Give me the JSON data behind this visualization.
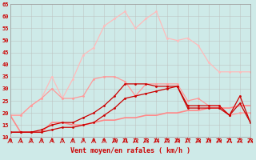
{
  "x": [
    0,
    1,
    2,
    3,
    4,
    5,
    6,
    7,
    8,
    9,
    10,
    11,
    12,
    13,
    14,
    15,
    16,
    17,
    18,
    19,
    20,
    21,
    22,
    23
  ],
  "line_flat": [
    19,
    12,
    12,
    12,
    16,
    16,
    15,
    15,
    16,
    17,
    17,
    18,
    18,
    19,
    19,
    20,
    20,
    21,
    21,
    22,
    22,
    22,
    23,
    23
  ],
  "line_dark1": [
    12,
    12,
    12,
    13,
    15,
    16,
    16,
    18,
    20,
    23,
    27,
    32,
    32,
    32,
    31,
    31,
    31,
    23,
    23,
    23,
    23,
    19,
    27,
    16
  ],
  "line_dark2": [
    12,
    12,
    12,
    12,
    13,
    14,
    14,
    15,
    16,
    19,
    22,
    26,
    27,
    28,
    29,
    30,
    31,
    22,
    22,
    22,
    22,
    19,
    24,
    16
  ],
  "line_med": [
    19,
    19,
    23,
    26,
    30,
    26,
    26,
    27,
    34,
    35,
    35,
    33,
    27,
    32,
    32,
    32,
    32,
    25,
    26,
    23,
    23,
    19,
    20,
    20
  ],
  "line_light": [
    19,
    19,
    23,
    26,
    35,
    26,
    34,
    44,
    47,
    56,
    59,
    62,
    55,
    59,
    62,
    51,
    50,
    51,
    48,
    41,
    37,
    37,
    37,
    37
  ],
  "bgcolor": "#ceeae8",
  "grid_color": "#bbbbbb",
  "color_flat": "#ff8888",
  "color_dark": "#cc0000",
  "color_med": "#ff9999",
  "color_light": "#ffbbbb",
  "xlabel": "Vent moyen/en rafales ( km/h )",
  "ylim": [
    10,
    65
  ],
  "xlim": [
    0,
    23
  ],
  "yticks": [
    10,
    15,
    20,
    25,
    30,
    35,
    40,
    45,
    50,
    55,
    60,
    65
  ],
  "tick_fontsize": 5,
  "xlabel_fontsize": 6
}
